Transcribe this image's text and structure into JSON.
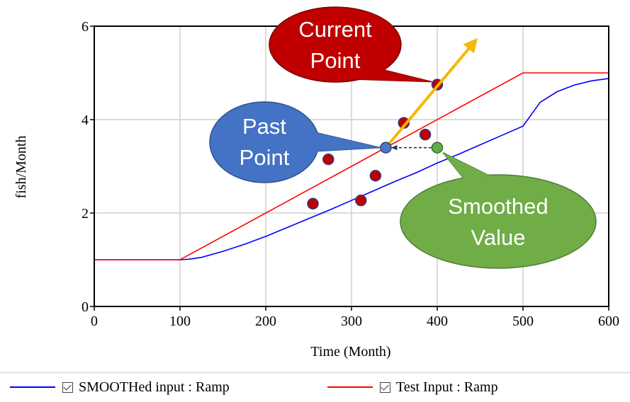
{
  "chart_data": {
    "type": "line",
    "xlabel": "Time (Month)",
    "ylabel": "fish/Month",
    "xlim": [
      0,
      600
    ],
    "ylim": [
      0,
      6
    ],
    "x_ticks": [
      0,
      100,
      200,
      300,
      400,
      500,
      600
    ],
    "y_ticks": [
      0,
      2,
      4,
      6
    ],
    "grid": true,
    "legend_placement": "bottom",
    "series": [
      {
        "name": "SMOOTHed input : Ramp",
        "color": "#0000ff",
        "x": [
          0,
          100,
          110,
          125,
          150,
          175,
          200,
          225,
          250,
          275,
          300,
          325,
          350,
          375,
          400,
          425,
          450,
          475,
          500,
          520,
          540,
          560,
          580,
          600
        ],
        "y": [
          1.0,
          1.0,
          1.01,
          1.05,
          1.18,
          1.33,
          1.5,
          1.69,
          1.88,
          2.07,
          2.27,
          2.47,
          2.67,
          2.86,
          3.07,
          3.26,
          3.46,
          3.66,
          3.86,
          4.37,
          4.6,
          4.74,
          4.83,
          4.88
        ]
      },
      {
        "name": "Test Input : Ramp",
        "color": "#ff0000",
        "x": [
          0,
          100,
          500,
          600
        ],
        "y": [
          1.0,
          1.0,
          5.0,
          5.0
        ]
      }
    ],
    "scatter_points": [
      {
        "x": 255,
        "y": 2.2
      },
      {
        "x": 273,
        "y": 3.15
      },
      {
        "x": 311,
        "y": 2.27
      },
      {
        "x": 328,
        "y": 2.8
      },
      {
        "x": 361,
        "y": 3.93
      },
      {
        "x": 386,
        "y": 3.68
      },
      {
        "x": 400,
        "y": 4.75
      }
    ],
    "highlight_points": {
      "past": {
        "x": 340,
        "y": 3.4,
        "color": "#4a78c2"
      },
      "smoothed": {
        "x": 400,
        "y": 3.4,
        "color": "#5fae47"
      }
    },
    "arrow": {
      "from": [
        340,
        3.4
      ],
      "to": [
        445,
        5.7
      ],
      "color": "#f5b800"
    },
    "dashed_arrow": {
      "from": [
        400,
        3.4
      ],
      "to": [
        340,
        3.4
      ]
    },
    "annotations": {
      "current": {
        "lines": [
          "Current",
          "Point"
        ],
        "fill": "#c00000",
        "anchor": [
          400,
          4.75
        ]
      },
      "past": {
        "lines": [
          "Past",
          "Point"
        ],
        "fill": "#4472c4",
        "anchor": [
          340,
          3.4
        ]
      },
      "smoothed": {
        "lines": [
          "Smoothed",
          "Value"
        ],
        "fill": "#70ad47",
        "anchor": [
          400,
          3.4
        ]
      }
    },
    "scatter_color": "#c00000"
  },
  "legend": {
    "items": [
      {
        "label": "SMOOTHed input : Ramp",
        "color": "#0000ff"
      },
      {
        "label": "Test Input : Ramp",
        "color": "#ff0000"
      }
    ]
  }
}
